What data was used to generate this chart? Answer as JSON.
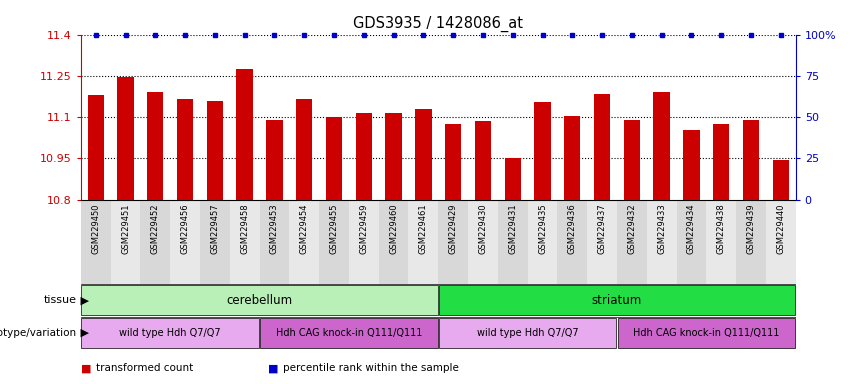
{
  "title": "GDS3935 / 1428086_at",
  "samples": [
    "GSM229450",
    "GSM229451",
    "GSM229452",
    "GSM229456",
    "GSM229457",
    "GSM229458",
    "GSM229453",
    "GSM229454",
    "GSM229455",
    "GSM229459",
    "GSM229460",
    "GSM229461",
    "GSM229429",
    "GSM229430",
    "GSM229431",
    "GSM229435",
    "GSM229436",
    "GSM229437",
    "GSM229432",
    "GSM229433",
    "GSM229434",
    "GSM229438",
    "GSM229439",
    "GSM229440"
  ],
  "values": [
    11.18,
    11.245,
    11.19,
    11.165,
    11.16,
    11.275,
    11.09,
    11.165,
    11.1,
    11.115,
    11.115,
    11.13,
    11.075,
    11.085,
    10.95,
    11.155,
    11.105,
    11.185,
    11.09,
    11.19,
    11.055,
    11.075,
    11.09,
    10.945
  ],
  "ylim_min": 10.8,
  "ylim_max": 11.4,
  "yticks": [
    10.8,
    10.95,
    11.1,
    11.25,
    11.4
  ],
  "ytick_labels": [
    "10.8",
    "10.95",
    "11.1",
    "11.25",
    "11.4"
  ],
  "right_ytick_pcts": [
    0,
    25,
    50,
    75,
    100
  ],
  "right_ytick_labels": [
    "0",
    "25",
    "50",
    "75",
    "100%"
  ],
  "bar_color": "#cc0000",
  "dot_color": "#0000cc",
  "tissue_groups": [
    {
      "label": "cerebellum",
      "start": 0,
      "end": 12,
      "color": "#b8f0b8"
    },
    {
      "label": "striatum",
      "start": 12,
      "end": 24,
      "color": "#22dd44"
    }
  ],
  "genotype_groups": [
    {
      "label": "wild type Hdh Q7/Q7",
      "start": 0,
      "end": 6,
      "color": "#e8aaee"
    },
    {
      "label": "Hdh CAG knock-in Q111/Q111",
      "start": 6,
      "end": 12,
      "color": "#cc66cc"
    },
    {
      "label": "wild type Hdh Q7/Q7",
      "start": 12,
      "end": 18,
      "color": "#e8aaee"
    },
    {
      "label": "Hdh CAG knock-in Q111/Q111",
      "start": 18,
      "end": 24,
      "color": "#cc66cc"
    }
  ],
  "legend": [
    {
      "label": "transformed count",
      "color": "#cc0000"
    },
    {
      "label": "percentile rank within the sample",
      "color": "#0000cc"
    }
  ],
  "xlabel_bg_even": "#d8d8d8",
  "xlabel_bg_odd": "#e8e8e8",
  "bar_width": 0.55
}
